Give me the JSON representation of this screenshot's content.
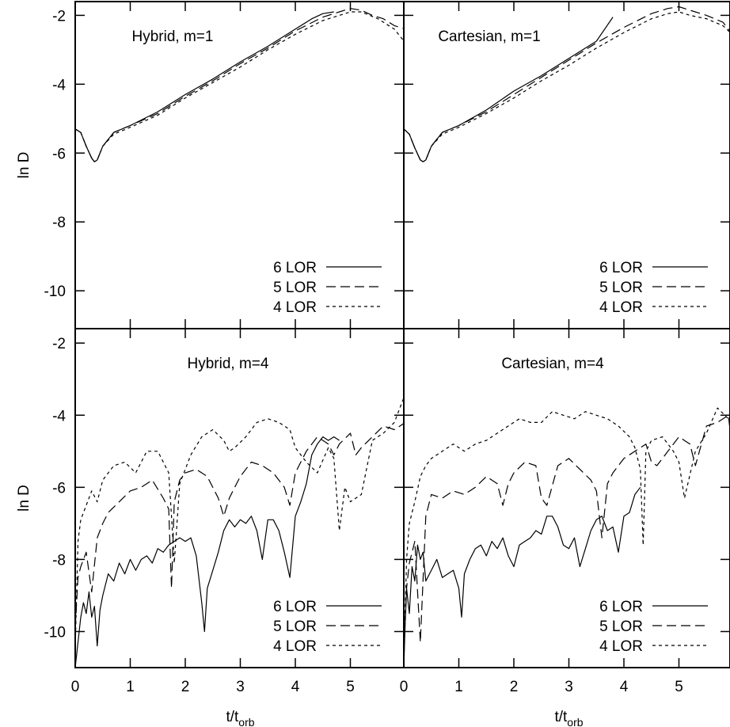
{
  "chart_data": [
    {
      "type": "line",
      "title": "Hybrid, m=1",
      "ylabel": "ln D",
      "xlabel": "",
      "xlim": [
        0,
        6
      ],
      "ylim": [
        -11.1,
        -1.6
      ],
      "yticks": [
        "-2",
        "-4",
        "-6",
        "-8",
        "-10"
      ],
      "xticks": [],
      "legend": "bottom-right",
      "series": [
        {
          "name": "6 LOR",
          "dash": "solid",
          "x": [
            0,
            0.1,
            0.2,
            0.3,
            0.35,
            0.4,
            0.5,
            0.7,
            1,
            1.5,
            2,
            2.5,
            3,
            3.5,
            4,
            4.3,
            4.5,
            4.7
          ],
          "y": [
            -5.3,
            -5.4,
            -5.8,
            -6.15,
            -6.25,
            -6.2,
            -5.8,
            -5.4,
            -5.2,
            -4.8,
            -4.3,
            -3.85,
            -3.35,
            -2.9,
            -2.4,
            -2.1,
            -1.95,
            -1.9
          ]
        },
        {
          "name": "5 LOR",
          "dash": "long",
          "x": [
            0,
            0.1,
            0.2,
            0.3,
            0.35,
            0.4,
            0.5,
            0.7,
            1,
            1.5,
            2,
            2.5,
            3,
            3.5,
            4,
            4.5,
            4.8,
            5.0,
            5.2,
            5.4,
            5.6,
            5.8,
            6.0
          ],
          "y": [
            -5.3,
            -5.4,
            -5.8,
            -6.15,
            -6.25,
            -6.2,
            -5.8,
            -5.4,
            -5.2,
            -4.85,
            -4.35,
            -3.9,
            -3.4,
            -2.95,
            -2.45,
            -2.05,
            -1.9,
            -1.8,
            -1.85,
            -2.0,
            -2.1,
            -2.3,
            -2.4
          ]
        },
        {
          "name": "4 LOR",
          "dash": "short",
          "x": [
            0,
            0.1,
            0.2,
            0.3,
            0.35,
            0.4,
            0.5,
            0.7,
            1,
            1.5,
            2,
            2.5,
            3,
            3.5,
            4,
            4.5,
            4.8,
            5.0,
            5.2,
            5.5,
            5.8,
            6.0
          ],
          "y": [
            -5.3,
            -5.4,
            -5.8,
            -6.15,
            -6.25,
            -6.2,
            -5.8,
            -5.45,
            -5.25,
            -4.9,
            -4.4,
            -3.95,
            -3.5,
            -3.0,
            -2.55,
            -2.15,
            -2.0,
            -1.9,
            -1.9,
            -2.1,
            -2.4,
            -2.8
          ]
        }
      ]
    },
    {
      "type": "line",
      "title": "Cartesian, m=1",
      "ylabel": "",
      "xlabel": "",
      "xlim": [
        0,
        6
      ],
      "ylim": [
        -11.1,
        -1.6
      ],
      "yticks": [],
      "xticks": [],
      "legend": "bottom-right",
      "series": [
        {
          "name": "6 LOR",
          "dash": "solid",
          "x": [
            0,
            0.1,
            0.2,
            0.3,
            0.35,
            0.4,
            0.5,
            0.7,
            1,
            1.5,
            2,
            2.5,
            3,
            3.5,
            3.8
          ],
          "y": [
            -5.3,
            -5.45,
            -5.85,
            -6.2,
            -6.25,
            -6.2,
            -5.8,
            -5.4,
            -5.2,
            -4.75,
            -4.2,
            -3.75,
            -3.25,
            -2.75,
            -2.05
          ]
        },
        {
          "name": "5 LOR",
          "dash": "long",
          "x": [
            0,
            0.1,
            0.2,
            0.3,
            0.35,
            0.4,
            0.5,
            0.7,
            1,
            1.5,
            2,
            2.5,
            3,
            3.5,
            4,
            4.5,
            4.8,
            5.0,
            5.2,
            5.5,
            5.8,
            6.0
          ],
          "y": [
            -5.3,
            -5.45,
            -5.85,
            -6.2,
            -6.25,
            -6.2,
            -5.8,
            -5.4,
            -5.2,
            -4.8,
            -4.3,
            -3.8,
            -3.3,
            -2.8,
            -2.35,
            -1.95,
            -1.8,
            -1.75,
            -1.85,
            -2.0,
            -2.2,
            -2.6
          ]
        },
        {
          "name": "4 LOR",
          "dash": "short",
          "x": [
            0,
            0.1,
            0.2,
            0.3,
            0.35,
            0.4,
            0.5,
            0.7,
            1,
            1.5,
            2,
            2.5,
            3,
            3.5,
            4,
            4.5,
            4.8,
            5.0,
            5.2,
            5.5,
            5.8,
            6.0
          ],
          "y": [
            -5.3,
            -5.45,
            -5.85,
            -6.2,
            -6.25,
            -6.2,
            -5.8,
            -5.45,
            -5.25,
            -4.85,
            -4.4,
            -3.9,
            -3.45,
            -2.95,
            -2.5,
            -2.1,
            -1.95,
            -1.9,
            -2.0,
            -2.1,
            -2.3,
            -2.6
          ]
        }
      ]
    },
    {
      "type": "line",
      "title": "Hybrid, m=4",
      "ylabel": "ln D",
      "xlabel": "t/t_orb",
      "xlim": [
        0,
        6
      ],
      "ylim": [
        -11,
        -1.6
      ],
      "yticks": [
        "-2",
        "-4",
        "-6",
        "-8",
        "-10"
      ],
      "xticks": [
        "0",
        "1",
        "2",
        "3",
        "4",
        "5"
      ],
      "legend": "bottom-right",
      "series": [
        {
          "name": "6 LOR",
          "dash": "solid",
          "x": [
            0,
            0.05,
            0.1,
            0.15,
            0.2,
            0.25,
            0.3,
            0.35,
            0.4,
            0.45,
            0.5,
            0.6,
            0.7,
            0.8,
            0.9,
            1.0,
            1.1,
            1.2,
            1.3,
            1.4,
            1.5,
            1.6,
            1.7,
            1.8,
            1.9,
            2.0,
            2.1,
            2.2,
            2.3,
            2.35,
            2.4,
            2.5,
            2.6,
            2.7,
            2.8,
            2.9,
            3.0,
            3.1,
            3.2,
            3.3,
            3.4,
            3.5,
            3.6,
            3.7,
            3.8,
            3.9,
            4.0,
            4.1,
            4.2,
            4.3,
            4.4,
            4.5,
            4.6,
            4.7,
            4.8
          ],
          "y": [
            -11,
            -10.3,
            -9.6,
            -9.2,
            -9.5,
            -8.9,
            -9.6,
            -9.3,
            -10.4,
            -9.4,
            -9.0,
            -8.4,
            -8.6,
            -8.1,
            -8.4,
            -8.0,
            -8.3,
            -8.0,
            -7.9,
            -8.1,
            -7.7,
            -7.8,
            -7.6,
            -7.5,
            -7.4,
            -7.5,
            -7.4,
            -7.9,
            -9.2,
            -10.0,
            -8.8,
            -8.3,
            -7.8,
            -7.2,
            -6.9,
            -7.1,
            -6.9,
            -7.0,
            -6.8,
            -7.2,
            -8.0,
            -6.9,
            -6.9,
            -7.2,
            -7.8,
            -8.5,
            -6.8,
            -6.4,
            -5.9,
            -5.1,
            -4.8,
            -4.6,
            -4.7,
            -4.6,
            -4.7
          ]
        },
        {
          "name": "5 LOR",
          "dash": "long",
          "x": [
            0,
            0.05,
            0.1,
            0.2,
            0.3,
            0.4,
            0.5,
            0.6,
            0.8,
            1.0,
            1.2,
            1.4,
            1.6,
            1.7,
            1.75,
            1.8,
            1.9,
            2.0,
            2.2,
            2.4,
            2.6,
            2.7,
            2.8,
            2.9,
            3.0,
            3.2,
            3.4,
            3.6,
            3.8,
            3.9,
            4.0,
            4.2,
            4.4,
            4.5,
            4.6,
            4.7,
            4.8,
            5.0,
            5.1,
            5.2,
            5.4,
            5.6,
            5.8,
            6.0
          ],
          "y": [
            -9.9,
            -8.5,
            -8.2,
            -7.8,
            -8.9,
            -7.4,
            -7.0,
            -6.7,
            -6.4,
            -6.1,
            -6.0,
            -5.8,
            -6.3,
            -6.6,
            -8.8,
            -6.4,
            -5.8,
            -5.6,
            -5.5,
            -5.7,
            -6.3,
            -6.8,
            -6.3,
            -6.0,
            -5.7,
            -5.3,
            -5.4,
            -5.6,
            -6.0,
            -6.5,
            -5.6,
            -5.0,
            -4.6,
            -4.7,
            -4.8,
            -5.1,
            -4.8,
            -4.5,
            -5.1,
            -4.9,
            -4.6,
            -4.3,
            -4.4,
            -4.2
          ]
        },
        {
          "name": "4 LOR",
          "dash": "short",
          "x": [
            0,
            0.05,
            0.1,
            0.2,
            0.3,
            0.4,
            0.5,
            0.7,
            0.9,
            1.1,
            1.3,
            1.5,
            1.7,
            1.75,
            1.8,
            1.9,
            2.1,
            2.3,
            2.5,
            2.7,
            2.8,
            2.9,
            3.1,
            3.3,
            3.5,
            3.7,
            3.9,
            4.0,
            4.2,
            4.4,
            4.6,
            4.7,
            4.8,
            4.9,
            5.0,
            5.2,
            5.4,
            5.6,
            5.8,
            6.0
          ],
          "y": [
            -10.5,
            -7.5,
            -6.9,
            -6.5,
            -6.1,
            -6.4,
            -5.8,
            -5.4,
            -5.3,
            -5.6,
            -5.0,
            -5.0,
            -5.6,
            -6.8,
            -8.1,
            -5.9,
            -5.1,
            -4.6,
            -4.4,
            -4.7,
            -5.0,
            -4.9,
            -4.6,
            -4.2,
            -4.1,
            -4.2,
            -4.4,
            -4.9,
            -5.3,
            -5.6,
            -4.9,
            -5.2,
            -7.2,
            -6.0,
            -6.4,
            -6.2,
            -4.7,
            -4.5,
            -4.2,
            -3.4
          ]
        }
      ]
    },
    {
      "type": "line",
      "title": "Cartesian, m=4",
      "ylabel": "",
      "xlabel": "t/t_orb",
      "xlim": [
        0,
        6
      ],
      "ylim": [
        -11,
        -1.6
      ],
      "yticks": [],
      "xticks": [
        "0",
        "1",
        "2",
        "3",
        "4",
        "5"
      ],
      "legend": "bottom-right",
      "series": [
        {
          "name": "6 LOR",
          "dash": "solid",
          "x": [
            0,
            0.02,
            0.05,
            0.1,
            0.15,
            0.2,
            0.25,
            0.3,
            0.35,
            0.4,
            0.5,
            0.6,
            0.7,
            0.8,
            0.9,
            1.0,
            1.05,
            1.1,
            1.2,
            1.3,
            1.4,
            1.5,
            1.6,
            1.7,
            1.8,
            1.9,
            2.0,
            2.1,
            2.2,
            2.3,
            2.4,
            2.5,
            2.6,
            2.7,
            2.8,
            2.9,
            3.0,
            3.1,
            3.2,
            3.3,
            3.4,
            3.5,
            3.6,
            3.7,
            3.8,
            3.9,
            4.0,
            4.1,
            4.2,
            4.3
          ],
          "y": [
            -11,
            -10.0,
            -8.8,
            -9.5,
            -8.2,
            -8.6,
            -7.6,
            -8.0,
            -7.8,
            -8.6,
            -8.3,
            -8.0,
            -8.5,
            -8.4,
            -8.3,
            -8.8,
            -9.6,
            -8.4,
            -8.0,
            -7.7,
            -7.6,
            -7.9,
            -7.5,
            -7.7,
            -7.4,
            -7.9,
            -8.2,
            -7.6,
            -7.5,
            -7.4,
            -7.2,
            -7.3,
            -6.8,
            -6.8,
            -7.1,
            -7.6,
            -7.7,
            -7.4,
            -8.2,
            -7.7,
            -7.2,
            -6.9,
            -6.8,
            -7.2,
            -7.1,
            -7.8,
            -6.8,
            -6.7,
            -6.2,
            -6.0
          ]
        },
        {
          "name": "5 LOR",
          "dash": "long",
          "x": [
            0,
            0.05,
            0.1,
            0.2,
            0.3,
            0.4,
            0.5,
            0.7,
            0.9,
            1.1,
            1.3,
            1.5,
            1.7,
            1.8,
            1.9,
            2.0,
            2.2,
            2.4,
            2.5,
            2.6,
            2.8,
            3.0,
            3.2,
            3.4,
            3.5,
            3.6,
            3.7,
            3.8,
            4.0,
            4.2,
            4.4,
            4.5,
            4.6,
            4.8,
            5.0,
            5.2,
            5.3,
            5.5,
            5.7,
            5.9,
            6.0
          ],
          "y": [
            -10.5,
            -8.8,
            -8.1,
            -7.5,
            -10.3,
            -6.8,
            -6.2,
            -6.3,
            -6.1,
            -6.2,
            -6.0,
            -5.7,
            -5.9,
            -6.5,
            -5.9,
            -5.6,
            -5.3,
            -5.4,
            -6.3,
            -6.5,
            -5.4,
            -5.2,
            -5.5,
            -5.8,
            -6.1,
            -7.4,
            -5.9,
            -5.6,
            -5.2,
            -5.0,
            -4.8,
            -5.3,
            -5.4,
            -5.0,
            -4.6,
            -4.8,
            -5.4,
            -4.3,
            -4.2,
            -4.0,
            -5.4
          ]
        },
        {
          "name": "4 LOR",
          "dash": "short",
          "x": [
            0,
            0.05,
            0.1,
            0.2,
            0.3,
            0.4,
            0.5,
            0.7,
            0.9,
            1.1,
            1.3,
            1.5,
            1.7,
            1.9,
            2.1,
            2.3,
            2.5,
            2.7,
            2.9,
            3.1,
            3.3,
            3.5,
            3.7,
            3.9,
            4.1,
            4.2,
            4.3,
            4.35,
            4.4,
            4.5,
            4.7,
            4.9,
            5.0,
            5.1,
            5.3,
            5.5,
            5.7,
            5.9,
            6.0
          ],
          "y": [
            -10.9,
            -8.0,
            -7.0,
            -6.4,
            -5.7,
            -5.4,
            -5.2,
            -5.0,
            -4.8,
            -5.0,
            -4.8,
            -4.7,
            -4.5,
            -4.3,
            -4.1,
            -4.2,
            -4.2,
            -3.9,
            -4.0,
            -4.1,
            -3.9,
            -4.0,
            -4.1,
            -4.3,
            -4.6,
            -4.9,
            -5.5,
            -7.6,
            -5.0,
            -4.7,
            -4.6,
            -5.0,
            -5.3,
            -6.3,
            -5.0,
            -4.5,
            -3.8,
            -4.1,
            -4.0
          ]
        }
      ]
    }
  ]
}
